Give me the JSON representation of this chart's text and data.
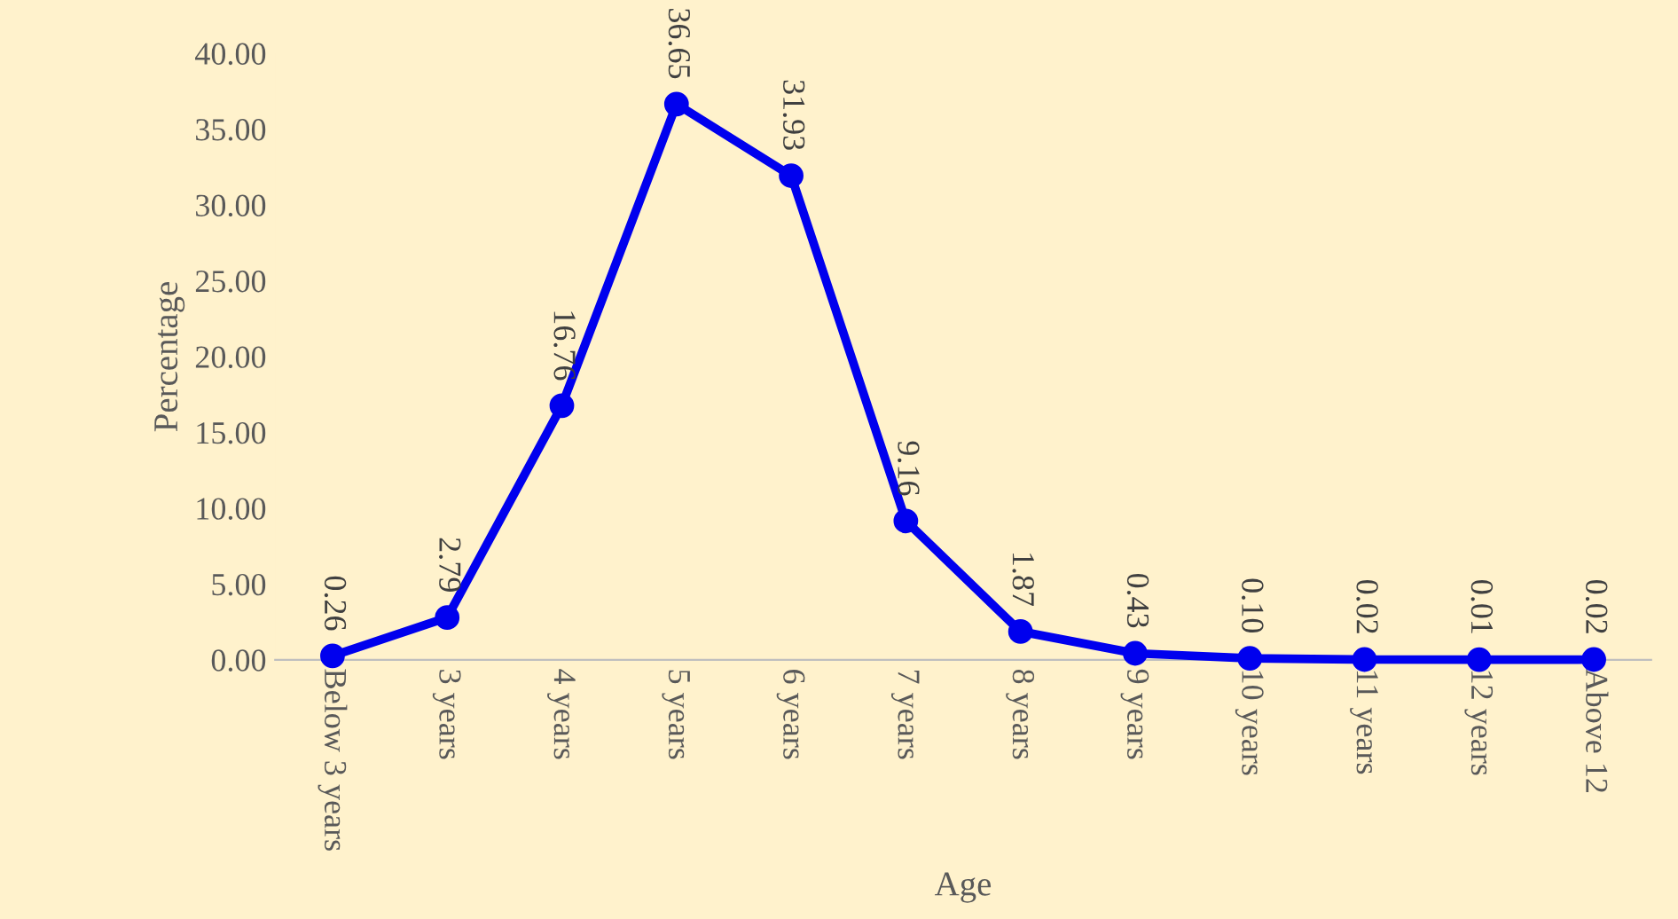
{
  "chart_data": {
    "type": "line",
    "xlabel": "Age",
    "ylabel": "Percentage",
    "categories": [
      "Below 3 years",
      "3 years",
      "4 years",
      "5 years",
      "6 years",
      "7 years",
      "8 years",
      "9 years",
      "10 years",
      "11 years",
      "12 years",
      "Above 12"
    ],
    "series": [
      {
        "color": "#0000ee",
        "values": [
          0.26,
          2.79,
          16.76,
          36.65,
          31.93,
          9.16,
          1.87,
          0.43,
          0.1,
          0.02,
          0.01,
          0.02
        ],
        "value_labels": [
          "0.26",
          "2.79",
          "16.76",
          "36.65",
          "31.93",
          "9.16",
          "1.87",
          "0.43",
          "0.10",
          "0.02",
          "0.01",
          "0.02"
        ]
      }
    ],
    "ylim": [
      0,
      40
    ],
    "yticks": [
      {
        "value": 0,
        "label": "0.00"
      },
      {
        "value": 5,
        "label": "5.00"
      },
      {
        "value": 10,
        "label": "10.00"
      },
      {
        "value": 15,
        "label": "15.00"
      },
      {
        "value": 20,
        "label": "20.00"
      },
      {
        "value": 25,
        "label": "25.00"
      },
      {
        "value": 30,
        "label": "30.00"
      },
      {
        "value": 35,
        "label": "35.00"
      },
      {
        "value": 40,
        "label": "40.00"
      }
    ],
    "marker": "circle",
    "line_style": "solid",
    "grid": false,
    "legend": false
  }
}
